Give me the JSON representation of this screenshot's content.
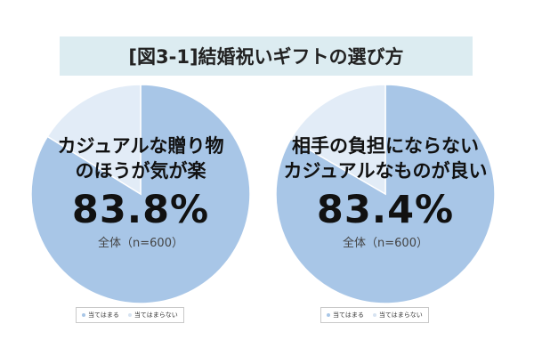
{
  "title": "[図3-1]結婚祝いギフトの選び方",
  "colors": {
    "applies": "#a8c6e7",
    "not_applies": "#e2ecf7",
    "title_bg": "#dcecf1"
  },
  "legend": {
    "applies_label": "当てはまる",
    "not_applies_label": "当てはまらない"
  },
  "charts": [
    {
      "headline_1": "カジュアルな贈り物",
      "headline_2": "のほうが気が楽",
      "value_text": "83.8%",
      "sample_text": "全体（n=600）"
    },
    {
      "headline_1": "相手の負担にならない",
      "headline_2": "カジュアルなものが良い",
      "value_text": "83.4%",
      "sample_text": "全体（n=600）"
    }
  ],
  "chart_data": [
    {
      "type": "pie",
      "title": "",
      "categories": [
        "当てはまる",
        "当てはまらない"
      ],
      "values": [
        83.8,
        16.2
      ],
      "n": 600
    },
    {
      "type": "pie",
      "title": "",
      "categories": [
        "当てはまる",
        "当てはまらない"
      ],
      "values": [
        83.4,
        16.6
      ],
      "n": 600
    }
  ]
}
